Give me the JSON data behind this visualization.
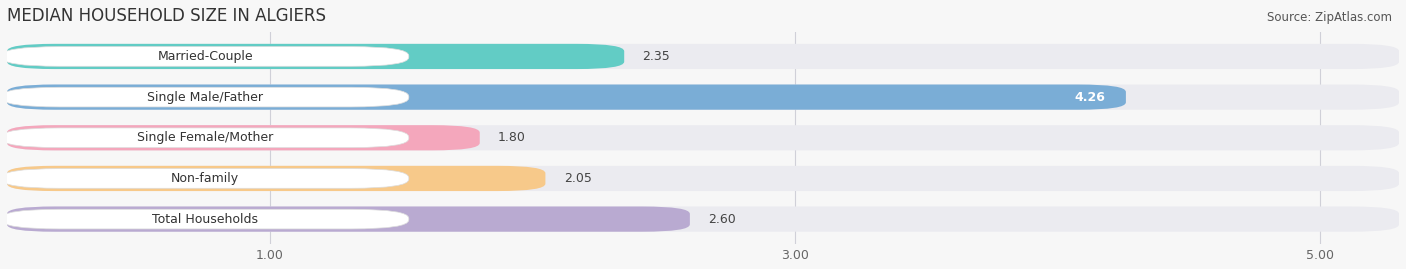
{
  "title": "MEDIAN HOUSEHOLD SIZE IN ALGIERS",
  "source": "Source: ZipAtlas.com",
  "categories": [
    "Married-Couple",
    "Single Male/Father",
    "Single Female/Mother",
    "Non-family",
    "Total Households"
  ],
  "values": [
    2.35,
    4.26,
    1.8,
    2.05,
    2.6
  ],
  "bar_colors": [
    "#62ccc5",
    "#7aadd6",
    "#f4a7bc",
    "#f7c98a",
    "#b9aad1"
  ],
  "bar_bg_color": "#ebebf0",
  "label_bg_color": "#ffffff",
  "value_label_colors": [
    "#444444",
    "#ffffff",
    "#444444",
    "#444444",
    "#444444"
  ],
  "xlim_min": 0.0,
  "xlim_max": 5.3,
  "xticks": [
    1.0,
    3.0,
    5.0
  ],
  "xtick_labels": [
    "1.00",
    "3.00",
    "5.00"
  ],
  "background_color": "#f7f7f7",
  "title_fontsize": 12,
  "source_fontsize": 8.5,
  "bar_label_fontsize": 9,
  "category_fontsize": 9,
  "bar_height": 0.62,
  "bar_gap": 0.38,
  "rounding": 0.18
}
